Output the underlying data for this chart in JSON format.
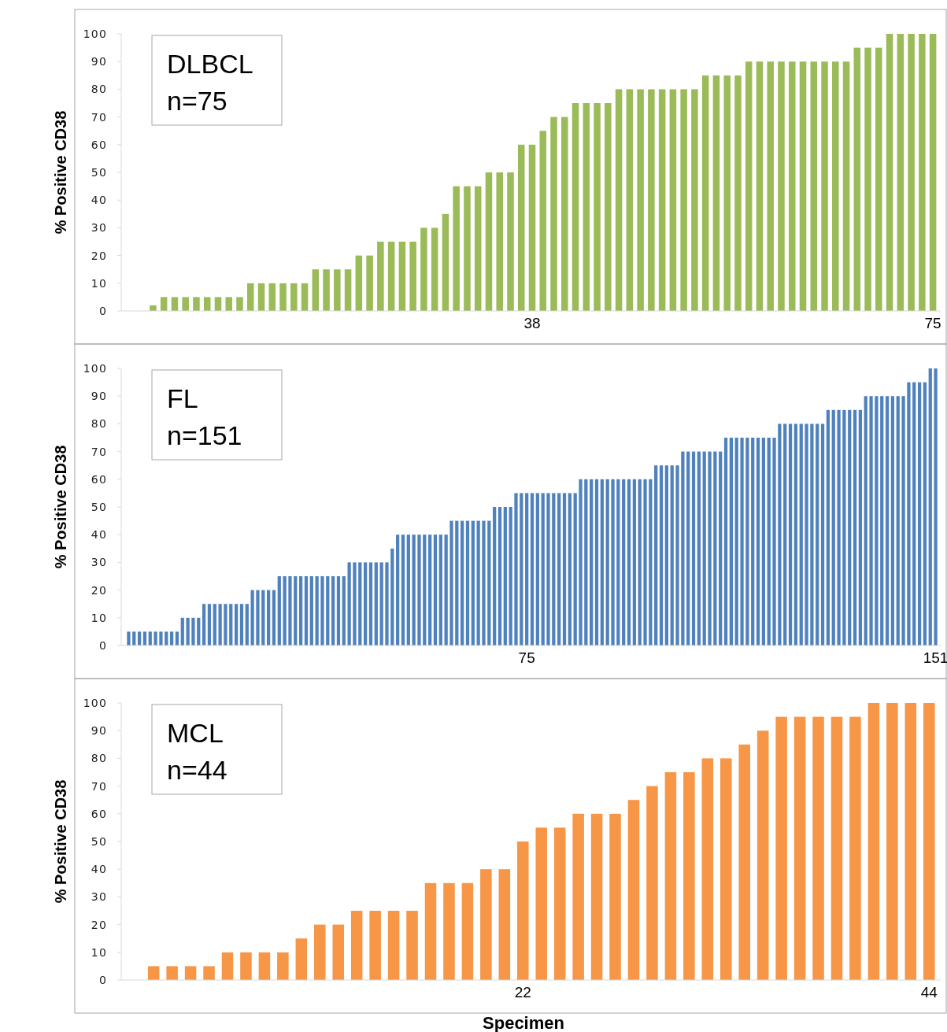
{
  "chart_data": [
    {
      "type": "bar",
      "ylabel": "% Positive CD38",
      "annotations": [
        "DLBCL",
        "n=75"
      ],
      "color": "#9bbb59",
      "ylim": [
        0,
        100
      ],
      "yticks": [
        0,
        10,
        20,
        30,
        40,
        50,
        60,
        70,
        80,
        90,
        100
      ],
      "categories": [
        null,
        null,
        null,
        null,
        null,
        null,
        null,
        null,
        null,
        null,
        null,
        null,
        null,
        null,
        null,
        null,
        null,
        null,
        null,
        null,
        null,
        null,
        null,
        null,
        null,
        null,
        null,
        null,
        null,
        null,
        null,
        null,
        null,
        null,
        null,
        null,
        null,
        "38",
        null,
        null,
        null,
        null,
        null,
        null,
        null,
        null,
        null,
        null,
        null,
        null,
        null,
        null,
        null,
        null,
        null,
        null,
        null,
        null,
        null,
        null,
        null,
        null,
        null,
        null,
        null,
        null,
        null,
        null,
        null,
        null,
        null,
        null,
        null,
        null,
        "75"
      ],
      "values": [
        0,
        0,
        2,
        5,
        5,
        5,
        5,
        5,
        5,
        5,
        5,
        10,
        10,
        10,
        10,
        10,
        10,
        15,
        15,
        15,
        15,
        20,
        20,
        25,
        25,
        25,
        25,
        30,
        30,
        35,
        45,
        45,
        45,
        50,
        50,
        50,
        60,
        60,
        65,
        70,
        70,
        75,
        75,
        75,
        75,
        80,
        80,
        80,
        80,
        80,
        80,
        80,
        80,
        85,
        85,
        85,
        85,
        90,
        90,
        90,
        90,
        90,
        90,
        90,
        90,
        90,
        90,
        95,
        95,
        95,
        100,
        100,
        100,
        100,
        100
      ]
    },
    {
      "type": "bar",
      "ylabel": "% Positive CD38",
      "annotations": [
        "FL",
        "n=151"
      ],
      "color": "#4f81bd",
      "ylim": [
        0,
        100
      ],
      "yticks": [
        0,
        10,
        20,
        30,
        40,
        50,
        60,
        70,
        80,
        90,
        100
      ],
      "categories": [
        null,
        null,
        null,
        null,
        null,
        null,
        null,
        null,
        null,
        null,
        null,
        null,
        null,
        null,
        null,
        null,
        null,
        null,
        null,
        null,
        null,
        null,
        null,
        null,
        null,
        null,
        null,
        null,
        null,
        null,
        null,
        null,
        null,
        null,
        null,
        null,
        null,
        null,
        null,
        null,
        null,
        null,
        null,
        null,
        null,
        null,
        null,
        null,
        null,
        null,
        null,
        null,
        null,
        null,
        null,
        null,
        null,
        null,
        null,
        null,
        null,
        null,
        null,
        null,
        null,
        null,
        null,
        null,
        null,
        null,
        null,
        null,
        null,
        null,
        "75",
        null,
        null,
        null,
        null,
        null,
        null,
        null,
        null,
        null,
        null,
        null,
        null,
        null,
        null,
        null,
        null,
        null,
        null,
        null,
        null,
        null,
        null,
        null,
        null,
        null,
        null,
        null,
        null,
        null,
        null,
        null,
        null,
        null,
        null,
        null,
        null,
        null,
        null,
        null,
        null,
        null,
        null,
        null,
        null,
        null,
        null,
        null,
        null,
        null,
        null,
        null,
        null,
        null,
        null,
        null,
        null,
        null,
        null,
        null,
        null,
        null,
        null,
        null,
        null,
        null,
        null,
        null,
        null,
        null,
        null,
        null,
        null,
        null,
        null,
        null,
        "151"
      ],
      "values": [
        5,
        5,
        5,
        5,
        5,
        5,
        5,
        5,
        5,
        5,
        10,
        10,
        10,
        10,
        15,
        15,
        15,
        15,
        15,
        15,
        15,
        15,
        15,
        20,
        20,
        20,
        20,
        20,
        25,
        25,
        25,
        25,
        25,
        25,
        25,
        25,
        25,
        25,
        25,
        25,
        25,
        30,
        30,
        30,
        30,
        30,
        30,
        30,
        30,
        35,
        40,
        40,
        40,
        40,
        40,
        40,
        40,
        40,
        40,
        40,
        45,
        45,
        45,
        45,
        45,
        45,
        45,
        45,
        50,
        50,
        50,
        50,
        55,
        55,
        55,
        55,
        55,
        55,
        55,
        55,
        55,
        55,
        55,
        55,
        60,
        60,
        60,
        60,
        60,
        60,
        60,
        60,
        60,
        60,
        60,
        60,
        60,
        60,
        65,
        65,
        65,
        65,
        65,
        70,
        70,
        70,
        70,
        70,
        70,
        70,
        70,
        75,
        75,
        75,
        75,
        75,
        75,
        75,
        75,
        75,
        75,
        80,
        80,
        80,
        80,
        80,
        80,
        80,
        80,
        80,
        85,
        85,
        85,
        85,
        85,
        85,
        85,
        90,
        90,
        90,
        90,
        90,
        90,
        90,
        90,
        95,
        95,
        95,
        95,
        100,
        100
      ]
    },
    {
      "type": "bar",
      "ylabel": "% Positive CD38",
      "xlabel": "Specimen",
      "annotations": [
        "MCL",
        "n=44"
      ],
      "color": "#f79646",
      "ylim": [
        0,
        100
      ],
      "yticks": [
        0,
        10,
        20,
        30,
        40,
        50,
        60,
        70,
        80,
        90,
        100
      ],
      "categories": [
        null,
        null,
        null,
        null,
        null,
        null,
        null,
        null,
        null,
        null,
        null,
        null,
        null,
        null,
        null,
        null,
        null,
        null,
        null,
        null,
        null,
        "22",
        null,
        null,
        null,
        null,
        null,
        null,
        null,
        null,
        null,
        null,
        null,
        null,
        null,
        null,
        null,
        null,
        null,
        null,
        null,
        null,
        null,
        "44"
      ],
      "values": [
        0,
        5,
        5,
        5,
        5,
        10,
        10,
        10,
        10,
        15,
        20,
        20,
        25,
        25,
        25,
        25,
        35,
        35,
        35,
        40,
        40,
        50,
        55,
        55,
        60,
        60,
        60,
        65,
        70,
        75,
        75,
        80,
        80,
        85,
        90,
        95,
        95,
        95,
        95,
        95,
        100,
        100,
        100,
        100
      ]
    }
  ]
}
